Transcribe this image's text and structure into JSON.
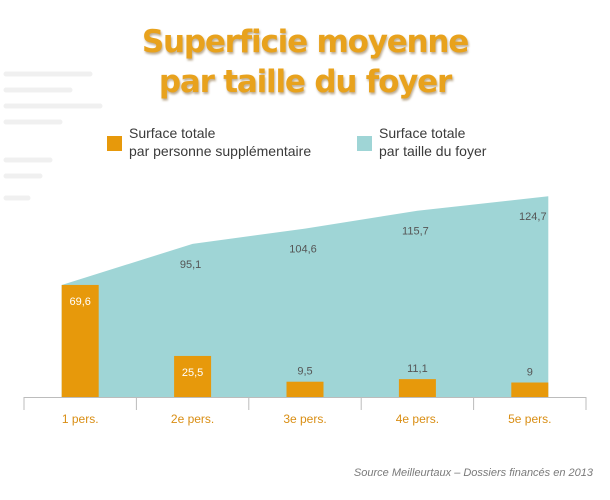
{
  "colors": {
    "accent": "#e8a21d",
    "bar": "#e7990b",
    "area": "#9fd5d6",
    "axis": "#bcbcbc",
    "category_text": "#d98e14",
    "value_text": "#555555",
    "bar_label": "#ffffff"
  },
  "title_lines": [
    "Superficie moyenne",
    "par taille du foyer"
  ],
  "legend": [
    {
      "lines": [
        "Surface totale",
        "par personne supplémentaire"
      ],
      "color": "#e7990b"
    },
    {
      "lines": [
        "Surface totale",
        "par taille du foyer"
      ],
      "color": "#9fd5d6"
    }
  ],
  "source": "Source Meilleurtaux – Dossiers financés en 2013",
  "chart_data": {
    "type": "bar",
    "title": "Superficie moyenne par taille du foyer",
    "categories": [
      "1 pers.",
      "2e pers.",
      "3e pers.",
      "4e pers.",
      "5e pers."
    ],
    "series": [
      {
        "name": "Surface totale par personne supplémentaire",
        "type": "bar",
        "values": [
          69.6,
          25.5,
          9.5,
          11.1,
          9
        ],
        "labels": [
          "69,6",
          "25,5",
          "9,5",
          "11,1",
          "9"
        ]
      },
      {
        "name": "Surface totale par taille du foyer",
        "type": "area",
        "values": [
          69.6,
          95.1,
          104.6,
          115.7,
          124.7
        ],
        "labels": [
          "",
          "95,1",
          "104,6",
          "115,7",
          "124,7"
        ]
      }
    ],
    "ylim": [
      0,
      140
    ],
    "grid": false,
    "legend_position": "top"
  }
}
